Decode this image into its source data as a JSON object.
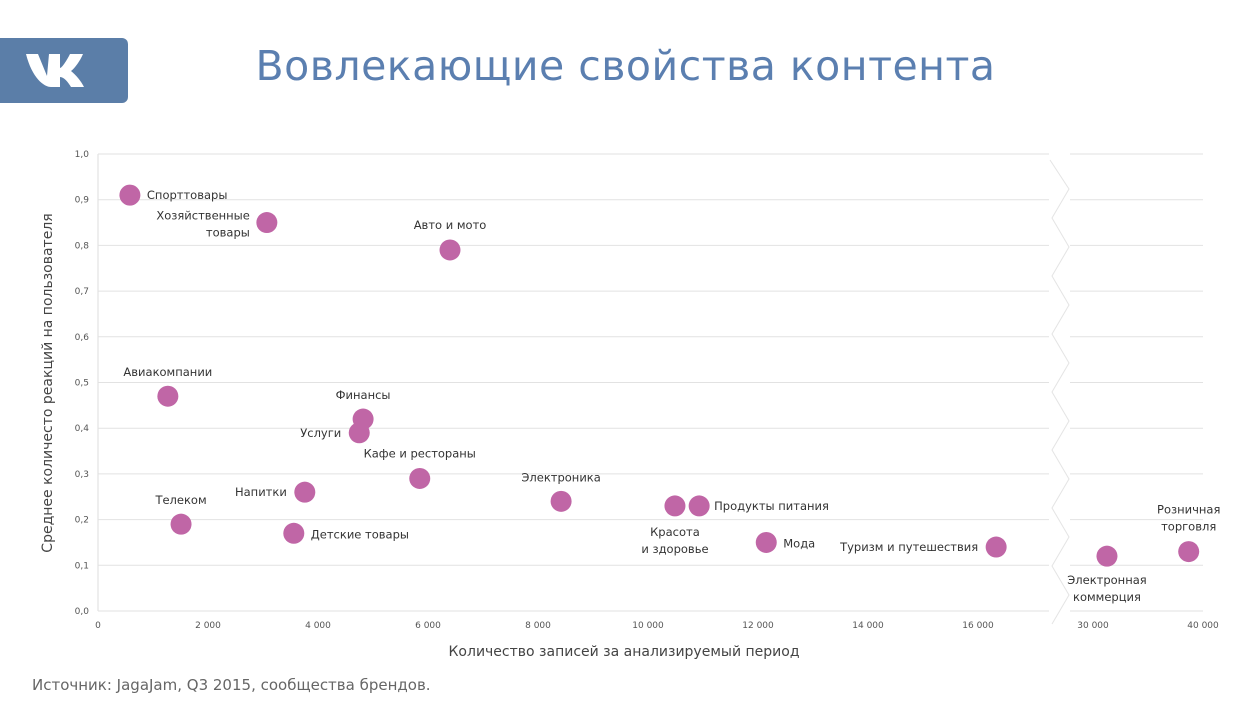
{
  "title": "Вовлекающие свойства контента",
  "logo": {
    "text": "VK",
    "color": "#5b7ea8"
  },
  "source": "Источник: JagaJam, Q3 2015, сообщества брендов.",
  "chart_data": {
    "type": "scatter",
    "xlabel": "Количество записей за анализируемый период",
    "ylabel": "Среднее количесто реакций на пользователя",
    "ylim": [
      0,
      1.0
    ],
    "xlim_segments": [
      [
        0,
        17000
      ],
      [
        30000,
        40000
      ]
    ],
    "x_axis_break": true,
    "grid": "horizontal",
    "marker_color": "#c066a6",
    "yticks": [
      "0,0",
      "0,1",
      "0,2",
      "0,3",
      "0,4",
      "0,5",
      "0,6",
      "0,7",
      "0,8",
      "0,9",
      "1,0"
    ],
    "xticks": [
      "0",
      "2 000",
      "4 000",
      "6 000",
      "8 000",
      "10 000",
      "12 000",
      "14 000",
      "16 000",
      "30 000",
      "40 000"
    ],
    "points": [
      {
        "label": [
          "Спорттовары"
        ],
        "x": 580,
        "y": 0.91
      },
      {
        "label": [
          "Хозяйственные",
          "товары"
        ],
        "x": 3070,
        "y": 0.85
      },
      {
        "label": [
          "Авто и мото"
        ],
        "x": 6400,
        "y": 0.79
      },
      {
        "label": [
          "Авиакомпании"
        ],
        "x": 1270,
        "y": 0.47
      },
      {
        "label": [
          "Финансы"
        ],
        "x": 4820,
        "y": 0.42
      },
      {
        "label": [
          "Услуги"
        ],
        "x": 4750,
        "y": 0.39
      },
      {
        "label": [
          "Кафе и рестораны"
        ],
        "x": 5850,
        "y": 0.29
      },
      {
        "label": [
          "Электроника"
        ],
        "x": 8420,
        "y": 0.24
      },
      {
        "label": [
          "Напитки"
        ],
        "x": 3760,
        "y": 0.26
      },
      {
        "label": [
          "Телеком"
        ],
        "x": 1510,
        "y": 0.19
      },
      {
        "label": [
          "Детские товары"
        ],
        "x": 3560,
        "y": 0.17
      },
      {
        "label": [
          "Красота",
          "и здоровье"
        ],
        "x": 10490,
        "y": 0.23
      },
      {
        "label": [
          "Продукты питания"
        ],
        "x": 10930,
        "y": 0.23
      },
      {
        "label": [
          "Мода"
        ],
        "x": 12150,
        "y": 0.15
      },
      {
        "label": [
          "Туризм и путешествия"
        ],
        "x": 16330,
        "y": 0.14
      },
      {
        "label": [
          "Электронная",
          "коммерция"
        ],
        "x": 31270,
        "y": 0.12
      },
      {
        "label": [
          "Розничная",
          "торговля"
        ],
        "x": 38700,
        "y": 0.13
      }
    ]
  }
}
